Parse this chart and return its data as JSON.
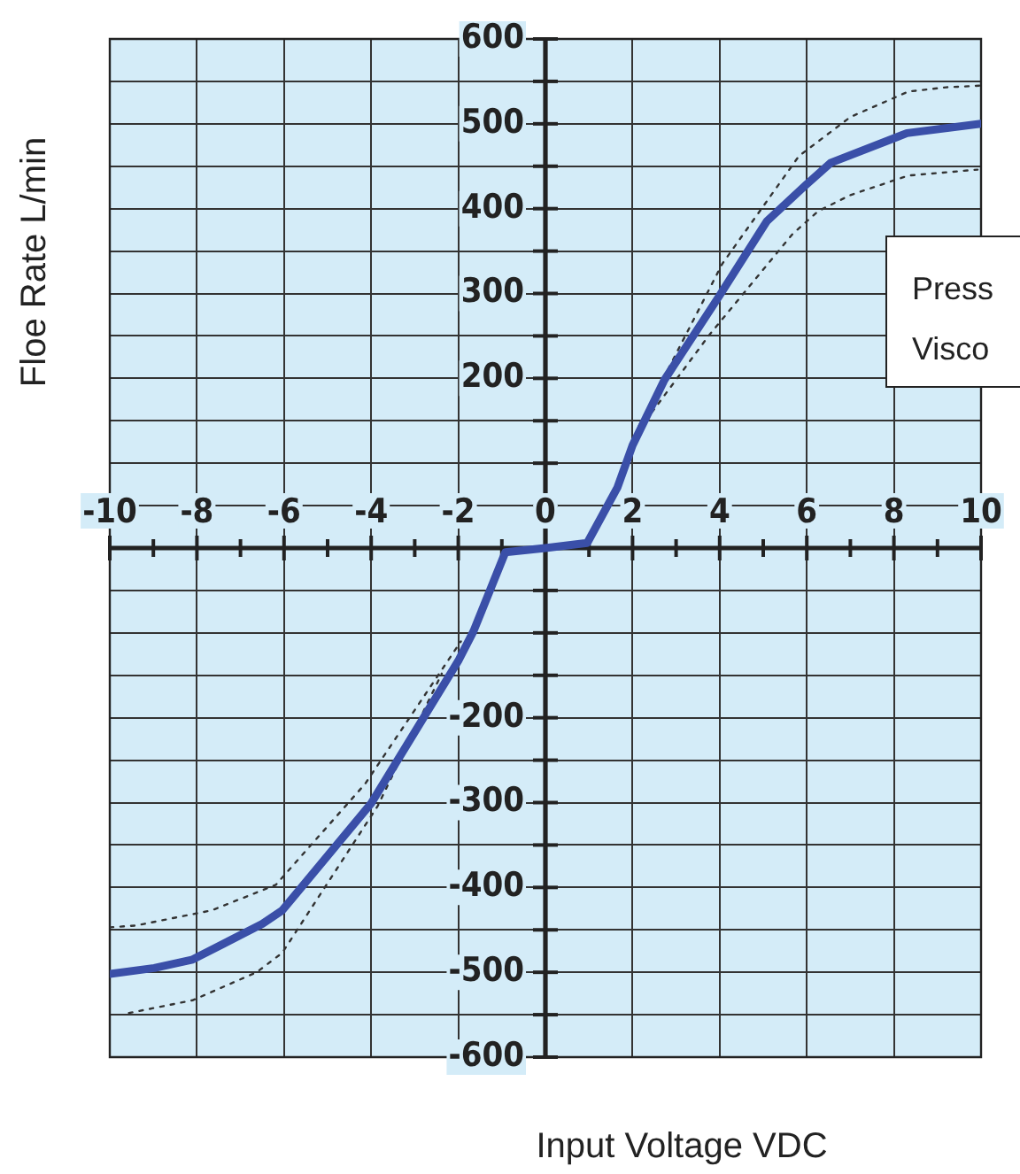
{
  "chart_data": {
    "type": "line",
    "xlabel": "Input Voltage VDC",
    "ylabel": "Floe Rate L/min",
    "annotations": [
      "Press",
      "Visco"
    ],
    "xlim": [
      -10,
      10
    ],
    "xticks": [
      -10,
      {
        "value": -9,
        "label": null
      },
      -8,
      {
        "value": -7,
        "label": null
      },
      -6,
      {
        "value": -5,
        "label": null
      },
      -4,
      {
        "value": -3,
        "label": null
      },
      -2,
      {
        "value": -1,
        "label": null
      },
      0,
      {
        "value": 1,
        "label": null
      },
      2,
      {
        "value": 3,
        "label": null
      },
      4,
      {
        "value": 5,
        "label": null
      },
      6,
      {
        "value": 7,
        "label": null
      },
      8,
      {
        "value": 9,
        "label": null
      },
      10
    ],
    "ylim": [
      -600,
      600
    ],
    "yticks": [
      -600,
      {
        "value": -550,
        "label": null
      },
      -500,
      {
        "value": -450,
        "label": null
      },
      -400,
      {
        "value": -350,
        "label": null
      },
      -300,
      {
        "value": -250,
        "label": null
      },
      -200,
      {
        "value": -150,
        "label": null
      },
      {
        "value": -100,
        "label": null
      },
      {
        "value": -50,
        "label": null
      },
      {
        "value": 0,
        "label": null
      },
      {
        "value": 50,
        "label": null
      },
      {
        "value": 100,
        "label": null
      },
      {
        "value": 150,
        "label": null
      },
      200,
      {
        "value": 250,
        "label": null
      },
      300,
      {
        "value": 350,
        "label": null
      },
      400,
      {
        "value": 450,
        "label": null
      },
      500,
      {
        "value": 550,
        "label": null
      },
      600
    ],
    "grid": true,
    "legend": false,
    "marker": "none",
    "series": [
      {
        "color": "#3a4fa8",
        "line_style": "solid",
        "x": [
          -10,
          -8.98,
          -8.1,
          -6.5,
          -6.04,
          -4,
          -2,
          -1.65,
          -0.92,
          0,
          0.96,
          1.65,
          2,
          2.73,
          3.99,
          5.08,
          5.96,
          6.55,
          8.3,
          10
        ],
        "values": [
          -502,
          -495,
          -485,
          -443,
          -427,
          -301,
          -133,
          -98,
          -5,
          0,
          6,
          71,
          121,
          198,
          297,
          385,
          427,
          454,
          489,
          500
        ]
      },
      {
        "color": "#333333",
        "line_style": "dotted",
        "x": [
          -10,
          -9.41,
          -7.66,
          -6.19,
          -4.14,
          -1.94,
          0,
          2.15,
          4.06,
          5.82,
          7,
          8.33,
          9.2,
          10
        ],
        "values": [
          -447,
          -445,
          -427,
          -397,
          -278,
          -110,
          null,
          144,
          335,
          462,
          508,
          538,
          543,
          545
        ]
      },
      {
        "color": "#333333",
        "line_style": "dotted",
        "x": [
          -9.56,
          -8.1,
          -6.63,
          -6.04,
          -3.85,
          -2.38,
          0,
          2.3,
          3.76,
          5.67,
          6.26,
          7,
          8.33,
          9.92
        ],
        "values": [
          -548,
          -533,
          -500,
          -477,
          -304,
          -148,
          null,
          150,
          251,
          370,
          397,
          416,
          439,
          446
        ]
      }
    ]
  }
}
